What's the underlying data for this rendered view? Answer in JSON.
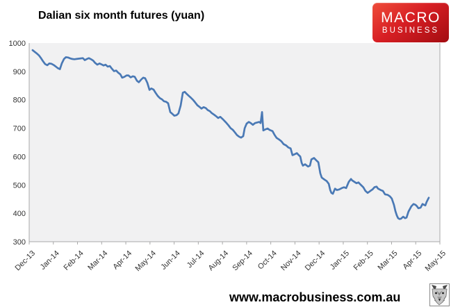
{
  "title": "Dalian six month futures (yuan)",
  "logo": {
    "line1": "MACRO",
    "line2": "BUSINESS",
    "bg_top": "#ef4d3a",
    "bg_bottom": "#a30c11",
    "text_color": "#ffffff"
  },
  "footer": {
    "url": "www.macrobusiness.com.au",
    "icon": "wolf-logo"
  },
  "chart_data": {
    "type": "line",
    "title": "Dalian six month futures (yuan)",
    "xlabel": "",
    "ylabel": "",
    "x_tick_labels": [
      "Dec-13",
      "Jan-14",
      "Feb-14",
      "Mar-14",
      "Apr-14",
      "May-14",
      "Jun-14",
      "Jul-14",
      "Aug-14",
      "Sep-14",
      "Oct-14",
      "Nov-14",
      "Dec-14",
      "Jan-15",
      "Feb-15",
      "Mar-15",
      "Apr-15",
      "May-15"
    ],
    "y_ticks": [
      300,
      400,
      500,
      600,
      700,
      800,
      900,
      1000
    ],
    "ylim": [
      300,
      1000
    ],
    "xlim_months": [
      0,
      17
    ],
    "grid": false,
    "legend": false,
    "plot_bg": "#f1f1f2",
    "axis_color": "#a8a8a8",
    "line_color": "#4a79b5",
    "series": [
      {
        "name": "Dalian six month futures (yuan)",
        "points": [
          [
            0.14,
            975
          ],
          [
            0.23,
            969
          ],
          [
            0.32,
            963
          ],
          [
            0.4,
            957
          ],
          [
            0.49,
            947
          ],
          [
            0.58,
            935
          ],
          [
            0.66,
            926
          ],
          [
            0.75,
            922
          ],
          [
            0.83,
            928
          ],
          [
            0.92,
            927
          ],
          [
            1.01,
            923
          ],
          [
            1.09,
            918
          ],
          [
            1.18,
            912
          ],
          [
            1.27,
            908
          ],
          [
            1.35,
            928
          ],
          [
            1.44,
            944
          ],
          [
            1.52,
            950
          ],
          [
            1.61,
            949
          ],
          [
            1.7,
            946
          ],
          [
            1.78,
            944
          ],
          [
            1.87,
            943
          ],
          [
            1.96,
            944
          ],
          [
            2.04,
            945
          ],
          [
            2.13,
            946
          ],
          [
            2.22,
            947
          ],
          [
            2.3,
            940
          ],
          [
            2.39,
            944
          ],
          [
            2.47,
            947
          ],
          [
            2.56,
            943
          ],
          [
            2.65,
            938
          ],
          [
            2.73,
            930
          ],
          [
            2.82,
            924
          ],
          [
            2.91,
            928
          ],
          [
            2.99,
            925
          ],
          [
            3.08,
            921
          ],
          [
            3.16,
            924
          ],
          [
            3.25,
            917
          ],
          [
            3.34,
            919
          ],
          [
            3.42,
            910
          ],
          [
            3.51,
            901
          ],
          [
            3.6,
            903
          ],
          [
            3.68,
            896
          ],
          [
            3.77,
            890
          ],
          [
            3.85,
            878
          ],
          [
            3.94,
            881
          ],
          [
            4.03,
            886
          ],
          [
            4.11,
            886
          ],
          [
            4.2,
            879
          ],
          [
            4.29,
            883
          ],
          [
            4.37,
            881
          ],
          [
            4.46,
            867
          ],
          [
            4.54,
            862
          ],
          [
            4.63,
            871
          ],
          [
            4.72,
            878
          ],
          [
            4.8,
            876
          ],
          [
            4.89,
            860
          ],
          [
            4.98,
            835
          ],
          [
            5.06,
            840
          ],
          [
            5.15,
            836
          ],
          [
            5.23,
            825
          ],
          [
            5.32,
            814
          ],
          [
            5.41,
            806
          ],
          [
            5.49,
            802
          ],
          [
            5.58,
            795
          ],
          [
            5.67,
            793
          ],
          [
            5.75,
            788
          ],
          [
            5.84,
            757
          ],
          [
            5.93,
            750
          ],
          [
            6.01,
            744
          ],
          [
            6.1,
            746
          ],
          [
            6.18,
            752
          ],
          [
            6.27,
            780
          ],
          [
            6.36,
            825
          ],
          [
            6.44,
            828
          ],
          [
            6.53,
            820
          ],
          [
            6.62,
            813
          ],
          [
            6.7,
            807
          ],
          [
            6.79,
            799
          ],
          [
            6.87,
            791
          ],
          [
            6.96,
            781
          ],
          [
            7.05,
            775
          ],
          [
            7.13,
            769
          ],
          [
            7.22,
            774
          ],
          [
            7.31,
            771
          ],
          [
            7.39,
            764
          ],
          [
            7.48,
            760
          ],
          [
            7.56,
            753
          ],
          [
            7.65,
            748
          ],
          [
            7.74,
            742
          ],
          [
            7.82,
            736
          ],
          [
            7.91,
            740
          ],
          [
            8.0,
            733
          ],
          [
            8.08,
            726
          ],
          [
            8.17,
            718
          ],
          [
            8.25,
            710
          ],
          [
            8.34,
            700
          ],
          [
            8.43,
            694
          ],
          [
            8.51,
            686
          ],
          [
            8.6,
            676
          ],
          [
            8.69,
            670
          ],
          [
            8.77,
            667
          ],
          [
            8.86,
            672
          ],
          [
            8.92,
            700
          ],
          [
            9.0,
            716
          ],
          [
            9.09,
            722
          ],
          [
            9.17,
            718
          ],
          [
            9.26,
            712
          ],
          [
            9.35,
            718
          ],
          [
            9.43,
            720
          ],
          [
            9.52,
            722
          ],
          [
            9.58,
            718
          ],
          [
            9.64,
            757
          ],
          [
            9.69,
            692
          ],
          [
            9.78,
            696
          ],
          [
            9.87,
            699
          ],
          [
            9.95,
            694
          ],
          [
            10.07,
            690
          ],
          [
            10.16,
            676
          ],
          [
            10.24,
            666
          ],
          [
            10.36,
            659
          ],
          [
            10.44,
            654
          ],
          [
            10.53,
            644
          ],
          [
            10.64,
            639
          ],
          [
            10.73,
            632
          ],
          [
            10.82,
            629
          ],
          [
            10.9,
            605
          ],
          [
            10.96,
            607
          ],
          [
            11.08,
            612
          ],
          [
            11.16,
            605
          ],
          [
            11.22,
            600
          ],
          [
            11.28,
            578
          ],
          [
            11.33,
            568
          ],
          [
            11.42,
            573
          ],
          [
            11.54,
            565
          ],
          [
            11.62,
            568
          ],
          [
            11.68,
            590
          ],
          [
            11.79,
            595
          ],
          [
            11.88,
            587
          ],
          [
            11.97,
            580
          ],
          [
            12.05,
            541
          ],
          [
            12.11,
            526
          ],
          [
            12.22,
            519
          ],
          [
            12.31,
            514
          ],
          [
            12.4,
            504
          ],
          [
            12.46,
            482
          ],
          [
            12.51,
            472
          ],
          [
            12.57,
            469
          ],
          [
            12.66,
            487
          ],
          [
            12.74,
            482
          ],
          [
            12.83,
            484
          ],
          [
            12.94,
            489
          ],
          [
            13.03,
            492
          ],
          [
            13.12,
            489
          ],
          [
            13.23,
            511
          ],
          [
            13.32,
            521
          ],
          [
            13.37,
            516
          ],
          [
            13.46,
            511
          ],
          [
            13.55,
            506
          ],
          [
            13.63,
            509
          ],
          [
            13.72,
            501
          ],
          [
            13.83,
            492
          ],
          [
            13.92,
            479
          ],
          [
            14.01,
            472
          ],
          [
            14.12,
            479
          ],
          [
            14.21,
            484
          ],
          [
            14.29,
            492
          ],
          [
            14.38,
            494
          ],
          [
            14.44,
            487
          ],
          [
            14.55,
            482
          ],
          [
            14.64,
            479
          ],
          [
            14.73,
            467
          ],
          [
            14.84,
            465
          ],
          [
            14.93,
            460
          ],
          [
            15.01,
            452
          ],
          [
            15.1,
            430
          ],
          [
            15.16,
            408
          ],
          [
            15.22,
            392
          ],
          [
            15.27,
            383
          ],
          [
            15.33,
            380
          ],
          [
            15.39,
            381
          ],
          [
            15.48,
            388
          ],
          [
            15.56,
            383
          ],
          [
            15.62,
            385
          ],
          [
            15.7,
            406
          ],
          [
            15.82,
            425
          ],
          [
            15.91,
            433
          ],
          [
            15.99,
            430
          ],
          [
            16.05,
            425
          ],
          [
            16.11,
            418
          ],
          [
            16.2,
            420
          ],
          [
            16.28,
            433
          ],
          [
            16.34,
            430
          ],
          [
            16.4,
            428
          ],
          [
            16.45,
            440
          ],
          [
            16.54,
            455
          ]
        ]
      }
    ]
  }
}
